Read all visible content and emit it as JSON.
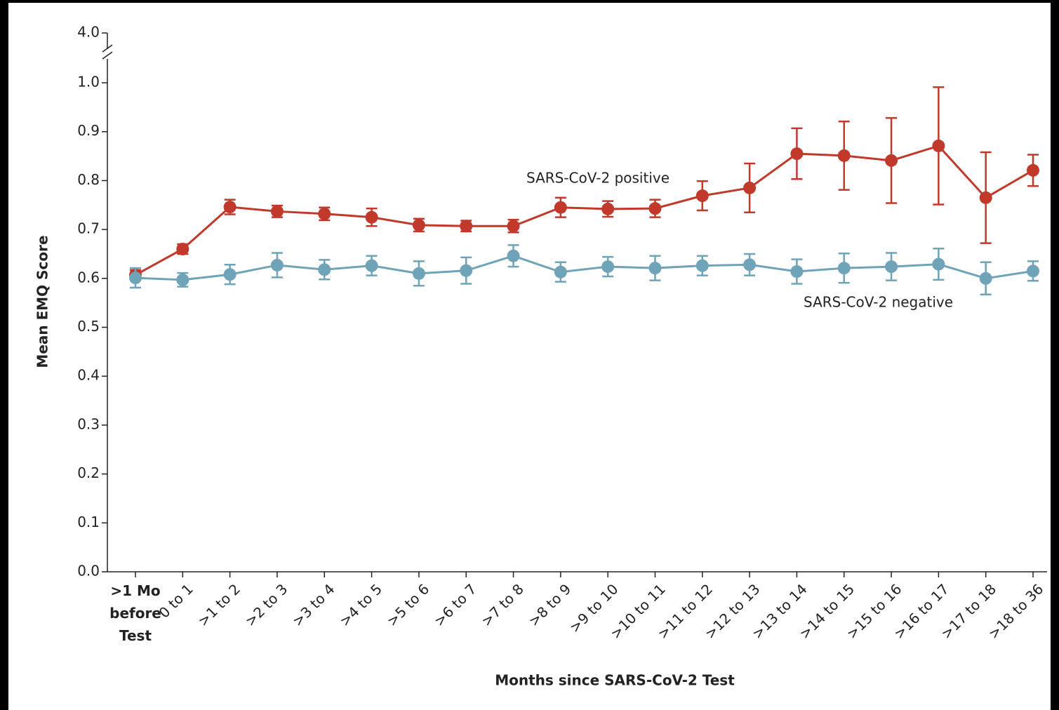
{
  "chart_data": {
    "type": "line",
    "x_label": "Months since SARS-CoV-2 Test",
    "y_label": "Mean EMQ Score",
    "categories": [
      ">1 Mo before Test",
      "0 to 1",
      ">1 to 2",
      ">2 to 3",
      ">3 to 4",
      ">4 to 5",
      ">5 to 6",
      ">6 to 7",
      ">7 to 8",
      ">8 to 9",
      ">9 to 10",
      ">10 to 11",
      ">11 to 12",
      ">12 to 13",
      ">13 to 14",
      ">14 to 15",
      ">15 to 16",
      ">16 to 17",
      ">17 to 18",
      ">18 to 36"
    ],
    "series": [
      {
        "name": "SARS-CoV-2 positive",
        "color": "#c0392b",
        "values": [
          0.607,
          0.66,
          0.746,
          0.737,
          0.732,
          0.725,
          0.709,
          0.707,
          0.707,
          0.745,
          0.742,
          0.743,
          0.769,
          0.785,
          0.855,
          0.851,
          0.841,
          0.871,
          0.765,
          0.821
        ],
        "errors": [
          0.01,
          0.01,
          0.015,
          0.012,
          0.013,
          0.018,
          0.013,
          0.011,
          0.013,
          0.02,
          0.016,
          0.018,
          0.03,
          0.05,
          0.052,
          0.07,
          0.087,
          0.12,
          0.093,
          0.032
        ]
      },
      {
        "name": "SARS-CoV-2 negative",
        "color": "#6fa3b8",
        "values": [
          0.601,
          0.597,
          0.608,
          0.627,
          0.618,
          0.626,
          0.61,
          0.616,
          0.646,
          0.613,
          0.624,
          0.621,
          0.626,
          0.628,
          0.614,
          0.621,
          0.624,
          0.629,
          0.6,
          0.615
        ],
        "errors": [
          0.02,
          0.014,
          0.02,
          0.025,
          0.02,
          0.02,
          0.025,
          0.027,
          0.022,
          0.02,
          0.02,
          0.025,
          0.02,
          0.022,
          0.025,
          0.03,
          0.028,
          0.032,
          0.033,
          0.02
        ]
      }
    ],
    "ylim": [
      0,
      4
    ],
    "y_break": [
      1,
      4
    ],
    "yticks": [
      {
        "value": 0,
        "label": "0.0"
      },
      {
        "value": 0.1,
        "label": "0.1"
      },
      {
        "value": 0.2,
        "label": "0.2"
      },
      {
        "value": 0.3,
        "label": "0.3"
      },
      {
        "value": 0.4,
        "label": "0.4"
      },
      {
        "value": 0.5,
        "label": "0.5"
      },
      {
        "value": 0.6,
        "label": "0.6"
      },
      {
        "value": 0.7,
        "label": "0.7"
      },
      {
        "value": 0.8,
        "label": "0.8"
      },
      {
        "value": 0.9,
        "label": "0.9"
      },
      {
        "value": 1,
        "label": "1.0"
      },
      {
        "value": 4,
        "label": "4.0"
      }
    ],
    "grid": false
  }
}
